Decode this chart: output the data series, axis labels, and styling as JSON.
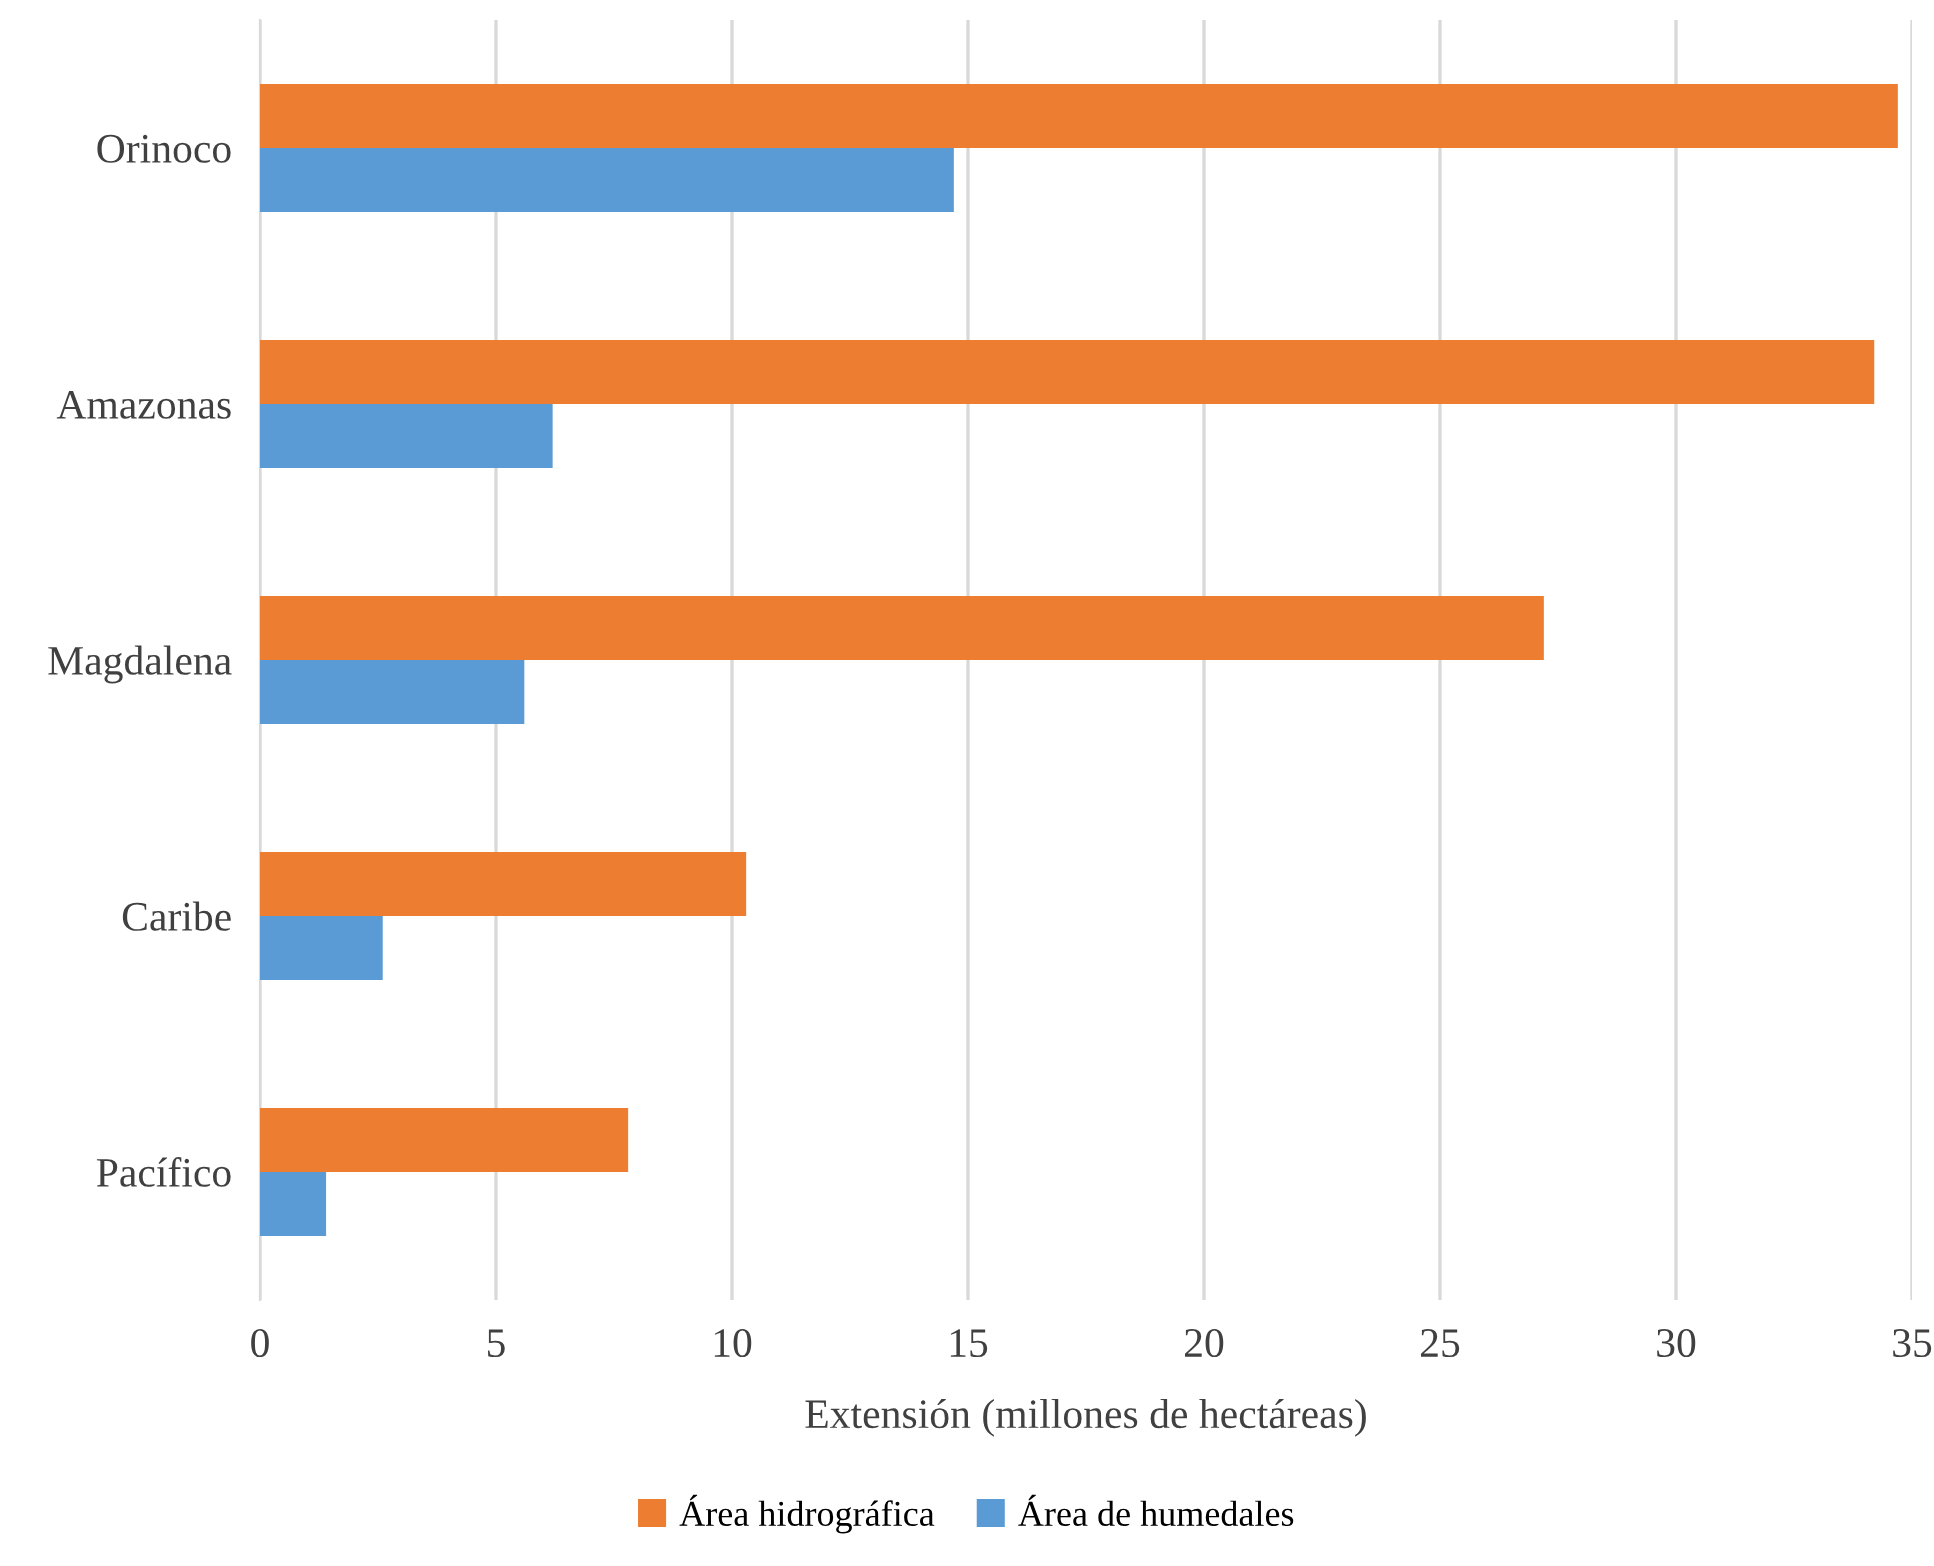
{
  "chart_data": {
    "type": "bar",
    "orientation": "horizontal",
    "xlabel": "Extensión (millones de hectáreas)",
    "categories": [
      "Orinoco",
      "Amazonas",
      "Magdalena",
      "Caribe",
      "Pacífico"
    ],
    "series": [
      {
        "name": "Área hidrográfica",
        "color": "#ed7d31",
        "values": [
          34.7,
          34.2,
          27.2,
          10.3,
          7.8
        ]
      },
      {
        "name": "Área de humedales",
        "color": "#5b9bd5",
        "values": [
          14.7,
          6.2,
          5.6,
          2.6,
          1.4
        ]
      }
    ],
    "xlim": [
      0,
      35
    ],
    "xticks": [
      0,
      5,
      10,
      15,
      20,
      25,
      30,
      35
    ],
    "grid": "x",
    "legend": "bottom"
  }
}
